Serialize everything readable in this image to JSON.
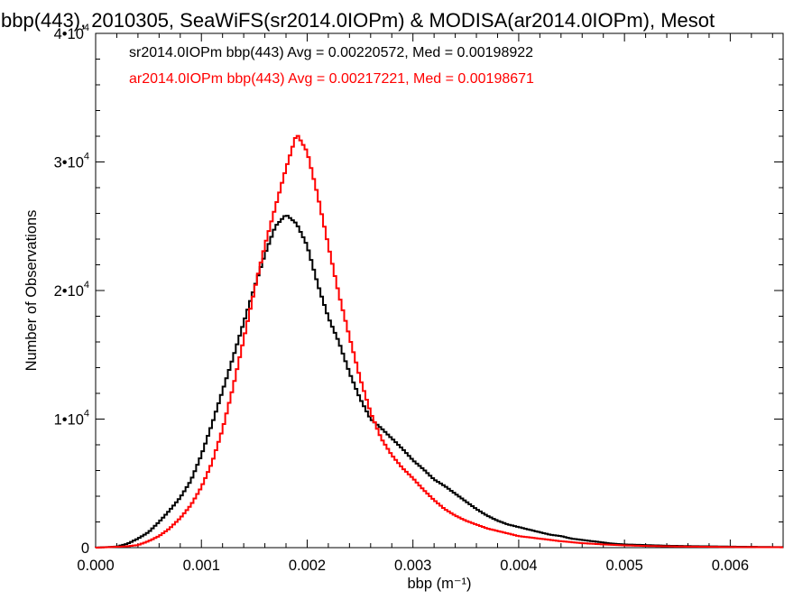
{
  "chart_data": {
    "type": "line",
    "title": "bbp(443), 2010305, SeaWiFS(sr2014.0IOPm) & MODISA(ar2014.0IOPm), Mesot",
    "xlabel": "bbp (m⁻¹)",
    "ylabel": "Number of Observations",
    "xlim": [
      0.0,
      0.0065
    ],
    "ylim": [
      0,
      40000
    ],
    "x_ticks": [
      {
        "value": 0.0,
        "label": "0.000"
      },
      {
        "value": 0.001,
        "label": "0.001"
      },
      {
        "value": 0.002,
        "label": "0.002"
      },
      {
        "value": 0.003,
        "label": "0.003"
      },
      {
        "value": 0.004,
        "label": "0.004"
      },
      {
        "value": 0.005,
        "label": "0.005"
      },
      {
        "value": 0.006,
        "label": "0.006"
      }
    ],
    "y_ticks": [
      {
        "value": 0,
        "base": "0",
        "exp": ""
      },
      {
        "value": 10000,
        "base": "1•10",
        "exp": "4"
      },
      {
        "value": 20000,
        "base": "2•10",
        "exp": "4"
      },
      {
        "value": 30000,
        "base": "3•10",
        "exp": "4"
      },
      {
        "value": 40000,
        "base": "4•10",
        "exp": "4"
      }
    ],
    "grid": false,
    "legend": "top-left",
    "series": [
      {
        "name": "sr2014.0IOPm bbp(443) Avg = 0.00220572, Med = 0.00198922",
        "color": "#000000",
        "points": [
          [
            0.0,
            0
          ],
          [
            0.0002,
            80
          ],
          [
            0.0003,
            300
          ],
          [
            0.0004,
            700
          ],
          [
            0.0005,
            1200
          ],
          [
            0.0006,
            2000
          ],
          [
            0.0007,
            2900
          ],
          [
            0.0008,
            3900
          ],
          [
            0.0009,
            5200
          ],
          [
            0.001,
            7200
          ],
          [
            0.0011,
            9600
          ],
          [
            0.0012,
            12200
          ],
          [
            0.0013,
            14800
          ],
          [
            0.0014,
            17500
          ],
          [
            0.0015,
            20200
          ],
          [
            0.0016,
            22800
          ],
          [
            0.0017,
            25000
          ],
          [
            0.0018,
            25900
          ],
          [
            0.0019,
            25200
          ],
          [
            0.002,
            23500
          ],
          [
            0.0021,
            20500
          ],
          [
            0.0022,
            17900
          ],
          [
            0.0023,
            16000
          ],
          [
            0.0024,
            13600
          ],
          [
            0.0025,
            11600
          ],
          [
            0.0026,
            10000
          ],
          [
            0.0027,
            9300
          ],
          [
            0.0028,
            8500
          ],
          [
            0.0029,
            7700
          ],
          [
            0.003,
            6800
          ],
          [
            0.0031,
            6100
          ],
          [
            0.0032,
            5300
          ],
          [
            0.0033,
            4800
          ],
          [
            0.0034,
            4200
          ],
          [
            0.0035,
            3600
          ],
          [
            0.0036,
            3000
          ],
          [
            0.0037,
            2500
          ],
          [
            0.0038,
            2100
          ],
          [
            0.0039,
            1800
          ],
          [
            0.004,
            1600
          ],
          [
            0.0041,
            1400
          ],
          [
            0.0042,
            1200
          ],
          [
            0.0043,
            1000
          ],
          [
            0.0044,
            900
          ],
          [
            0.0045,
            700
          ],
          [
            0.0046,
            600
          ],
          [
            0.0047,
            500
          ],
          [
            0.0048,
            400
          ],
          [
            0.0049,
            300
          ],
          [
            0.005,
            250
          ],
          [
            0.0052,
            200
          ],
          [
            0.0054,
            150
          ],
          [
            0.0056,
            120
          ],
          [
            0.0058,
            100
          ],
          [
            0.006,
            80
          ],
          [
            0.0062,
            60
          ],
          [
            0.0065,
            40
          ]
        ]
      },
      {
        "name": "ar2014.0IOPm bbp(443) Avg = 0.00217221, Med = 0.00198671",
        "color": "#ff0000",
        "points": [
          [
            0.0,
            0
          ],
          [
            0.0003,
            100
          ],
          [
            0.0004,
            200
          ],
          [
            0.0005,
            500
          ],
          [
            0.0006,
            900
          ],
          [
            0.0007,
            1500
          ],
          [
            0.0008,
            2300
          ],
          [
            0.0009,
            3300
          ],
          [
            0.001,
            4700
          ],
          [
            0.0011,
            6600
          ],
          [
            0.0012,
            9200
          ],
          [
            0.0013,
            12500
          ],
          [
            0.0014,
            16200
          ],
          [
            0.0015,
            20000
          ],
          [
            0.0016,
            23500
          ],
          [
            0.0017,
            26500
          ],
          [
            0.0018,
            29500
          ],
          [
            0.0019,
            32200
          ],
          [
            0.002,
            30800
          ],
          [
            0.0021,
            27400
          ],
          [
            0.0022,
            23500
          ],
          [
            0.0023,
            19700
          ],
          [
            0.0024,
            16400
          ],
          [
            0.0025,
            13200
          ],
          [
            0.0026,
            10500
          ],
          [
            0.0027,
            8500
          ],
          [
            0.0028,
            7200
          ],
          [
            0.0029,
            6200
          ],
          [
            0.003,
            5400
          ],
          [
            0.0031,
            4500
          ],
          [
            0.0032,
            3700
          ],
          [
            0.0033,
            3000
          ],
          [
            0.0034,
            2500
          ],
          [
            0.0035,
            2100
          ],
          [
            0.0036,
            1800
          ],
          [
            0.0037,
            1500
          ],
          [
            0.0038,
            1300
          ],
          [
            0.0039,
            1100
          ],
          [
            0.004,
            900
          ],
          [
            0.0042,
            700
          ],
          [
            0.0044,
            500
          ],
          [
            0.0046,
            350
          ],
          [
            0.0048,
            250
          ],
          [
            0.005,
            180
          ],
          [
            0.0052,
            130
          ],
          [
            0.0055,
            90
          ],
          [
            0.006,
            50
          ],
          [
            0.0065,
            30
          ]
        ]
      }
    ]
  }
}
